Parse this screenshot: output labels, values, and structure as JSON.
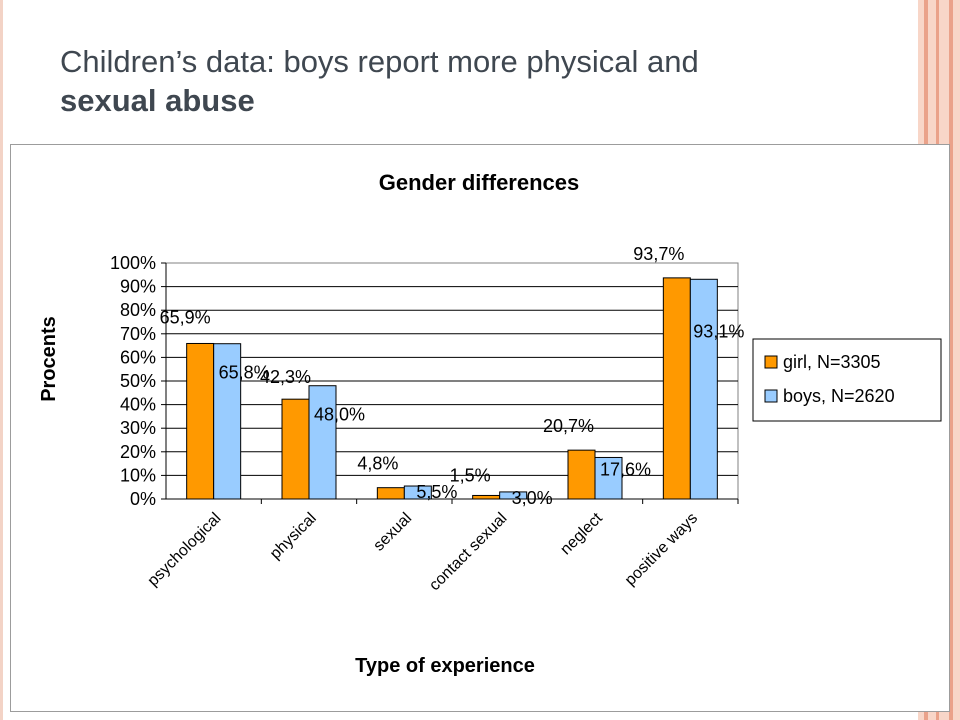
{
  "slide": {
    "title_regular": "Children’s data: boys report more physical and",
    "title_bold": "sexual abuse"
  },
  "colors": {
    "girl": "#ff9900",
    "boys": "#99ccff",
    "deco": "#f6c9b8",
    "deco_dark": "#eaa28a"
  },
  "chart_data": {
    "type": "bar",
    "title": "Gender differences",
    "xlabel": "Type of experience",
    "ylabel": "Procents",
    "ylim": [
      0,
      100
    ],
    "yticks": [
      "0%",
      "10%",
      "20%",
      "30%",
      "40%",
      "50%",
      "60%",
      "70%",
      "80%",
      "90%",
      "100%"
    ],
    "grid": true,
    "legend_position": "right",
    "categories": [
      "psychological",
      "physical",
      "sexual",
      "contact sexual",
      "neglect",
      "positive ways"
    ],
    "series": [
      {
        "name": "girl, N=3305",
        "values": [
          65.9,
          42.3,
          4.8,
          1.5,
          20.7,
          93.7
        ],
        "labels": [
          "65,9%",
          "42,3%",
          "4,8%",
          "1,5%",
          "20,7%",
          "93,7%"
        ]
      },
      {
        "name": "boys, N=2620",
        "values": [
          65.8,
          48.0,
          5.5,
          3.0,
          17.6,
          93.1
        ],
        "labels": [
          "65,8%",
          "48,0%",
          "5,5%",
          "3,0%",
          "17,6%",
          "93,1%"
        ]
      }
    ]
  }
}
